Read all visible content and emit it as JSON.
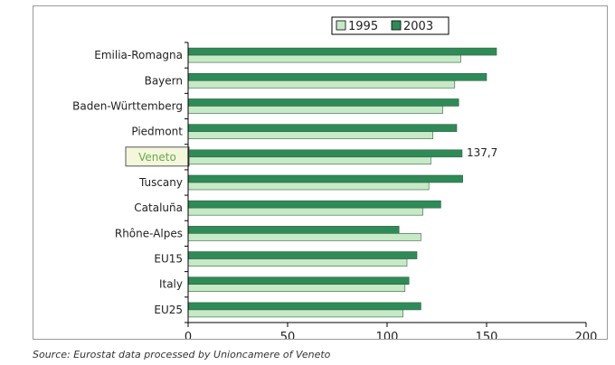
{
  "chart_data": {
    "type": "bar",
    "orientation": "horizontal",
    "categories": [
      "Emilia-Romagna",
      "Bayern",
      "Baden-Württemberg",
      "Piedmont",
      "Veneto",
      "Tuscany",
      "Cataluña",
      "Rhône-Alpes",
      "EU15",
      "Italy",
      "EU25"
    ],
    "highlighted_category": "Veneto",
    "series": [
      {
        "name": "1995",
        "color": "#c6e9c6",
        "values": [
          137,
          134,
          128,
          123,
          122,
          121,
          118,
          117,
          110,
          109,
          108
        ]
      },
      {
        "name": "2003",
        "color": "#2e8b57",
        "values": [
          155,
          150,
          136,
          135,
          137.7,
          138,
          127,
          106,
          115,
          111,
          117
        ]
      }
    ],
    "xlim": [
      0,
      200
    ],
    "xticks": [
      0,
      50,
      100,
      150,
      200
    ],
    "annotations": [
      {
        "category": "Veneto",
        "series": "2003",
        "text": "137,7"
      }
    ],
    "legend": {
      "position": "top-center",
      "items": [
        "1995",
        "2003"
      ]
    },
    "grid": false,
    "title": "",
    "xlabel": "",
    "ylabel": ""
  },
  "source_note": "Source: Eurostat data processed by Unioncamere of Veneto"
}
